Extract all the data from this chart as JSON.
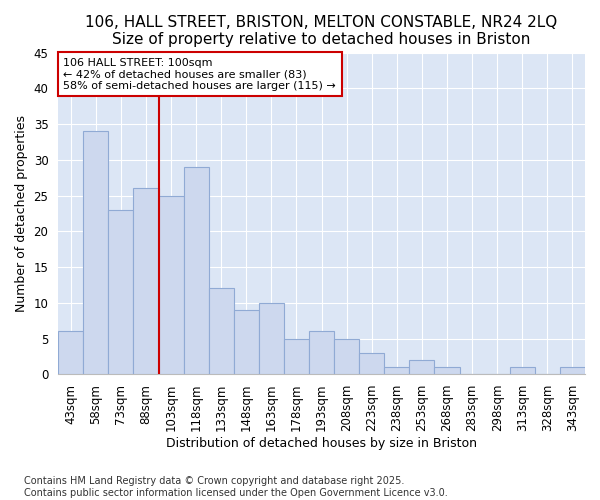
{
  "title1": "106, HALL STREET, BRISTON, MELTON CONSTABLE, NR24 2LQ",
  "title2": "Size of property relative to detached houses in Briston",
  "xlabel": "Distribution of detached houses by size in Briston",
  "ylabel": "Number of detached properties",
  "categories": [
    "43sqm",
    "58sqm",
    "73sqm",
    "88sqm",
    "103sqm",
    "118sqm",
    "133sqm",
    "148sqm",
    "163sqm",
    "178sqm",
    "193sqm",
    "208sqm",
    "223sqm",
    "238sqm",
    "253sqm",
    "268sqm",
    "283sqm",
    "298sqm",
    "313sqm",
    "328sqm",
    "343sqm"
  ],
  "values": [
    6,
    34,
    23,
    26,
    25,
    29,
    12,
    9,
    10,
    5,
    6,
    5,
    3,
    1,
    2,
    1,
    0,
    0,
    1,
    0,
    1
  ],
  "bar_color": "#cdd8ee",
  "bar_edge_color": "#90aad4",
  "vline_x": 4.0,
  "vline_color": "#cc0000",
  "annotation_title": "106 HALL STREET: 100sqm",
  "annotation_line2": "← 42% of detached houses are smaller (83)",
  "annotation_line3": "58% of semi-detached houses are larger (115) →",
  "annotation_box_color": "#ffffff",
  "annotation_box_edge": "#cc0000",
  "ylim": [
    0,
    45
  ],
  "yticks": [
    0,
    5,
    10,
    15,
    20,
    25,
    30,
    35,
    40,
    45
  ],
  "bg_color": "#dce6f5",
  "grid_color": "#ffffff",
  "footer1": "Contains HM Land Registry data © Crown copyright and database right 2025.",
  "footer2": "Contains public sector information licensed under the Open Government Licence v3.0.",
  "title_fontsize": 11,
  "label_fontsize": 9,
  "tick_fontsize": 8.5,
  "footer_fontsize": 7
}
